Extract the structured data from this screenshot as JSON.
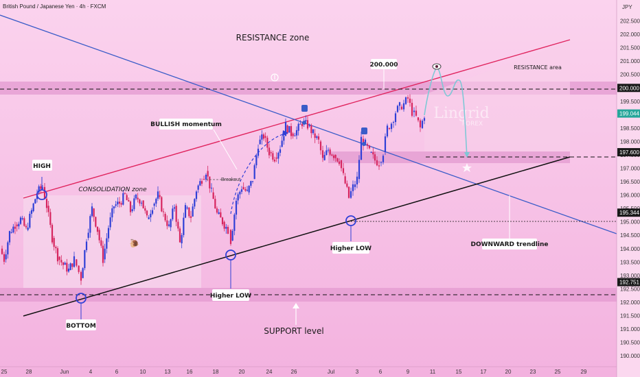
{
  "header": {
    "symbol_title": "British Pound / Japanese Yen · 4h · FXCM"
  },
  "currency_label": "JPY",
  "watermark": {
    "brand": "Lingrid",
    "sub": "FOREX"
  },
  "chart_data": {
    "type": "candlestick",
    "x_ticks": [
      "25",
      "28",
      "Jun",
      "4",
      "6",
      "10",
      "13",
      "16",
      "18",
      "20",
      "24",
      "26",
      "Jul",
      "3",
      "6",
      "9",
      "11",
      "15",
      "17",
      "20",
      "23",
      "25",
      "29"
    ],
    "y_ticks": [
      "202.500",
      "202.000",
      "201.500",
      "201.000",
      "200.500",
      "200.000",
      "199.500",
      "199.000",
      "198.500",
      "198.000",
      "197.500",
      "197.000",
      "196.500",
      "196.000",
      "195.500",
      "195.000",
      "194.500",
      "194.000",
      "193.500",
      "193.000",
      "192.500",
      "192.000",
      "191.500",
      "191.000",
      "190.500",
      "190.000"
    ],
    "ylim": [
      189.9,
      203.0
    ],
    "price_levels": [
      {
        "value": 200.0,
        "label": "200.000",
        "color": "#1a1a1a"
      },
      {
        "value": 199.044,
        "label": "199.044",
        "color": "#26a69a"
      },
      {
        "value": 197.6,
        "label": "197.600",
        "color": "#1a1a1a"
      },
      {
        "value": 195.344,
        "label": "195.344",
        "color": "#1a1a1a"
      },
      {
        "value": 192.751,
        "label": "192.751",
        "color": "#1a1a1a"
      }
    ],
    "annotations": {
      "resistance_zone": "RESISTANCE zone",
      "resistance_area": "RESISTANCE area",
      "level_200": "200.000",
      "bullish_momentum": "BULLISH momentum",
      "breakout": "Breakout",
      "consolidation": "CONSOLIDATION zone",
      "high": "HIGH",
      "bottom": "BOTTOM",
      "higher_low_1": "Higher LOW",
      "higher_low_2": "Higher LOW",
      "downward_trendline": "DOWNWARD trendline",
      "support_level": "SUPPORT level"
    },
    "colors": {
      "up": "#2f3fd6",
      "down": "#d6245e",
      "resistance_line": "#e0245e",
      "downtrend_line": "#3a5cc8",
      "support_line": "#111111",
      "zone_fill": "#e39ad0",
      "projection": "#7fc8d6"
    }
  }
}
